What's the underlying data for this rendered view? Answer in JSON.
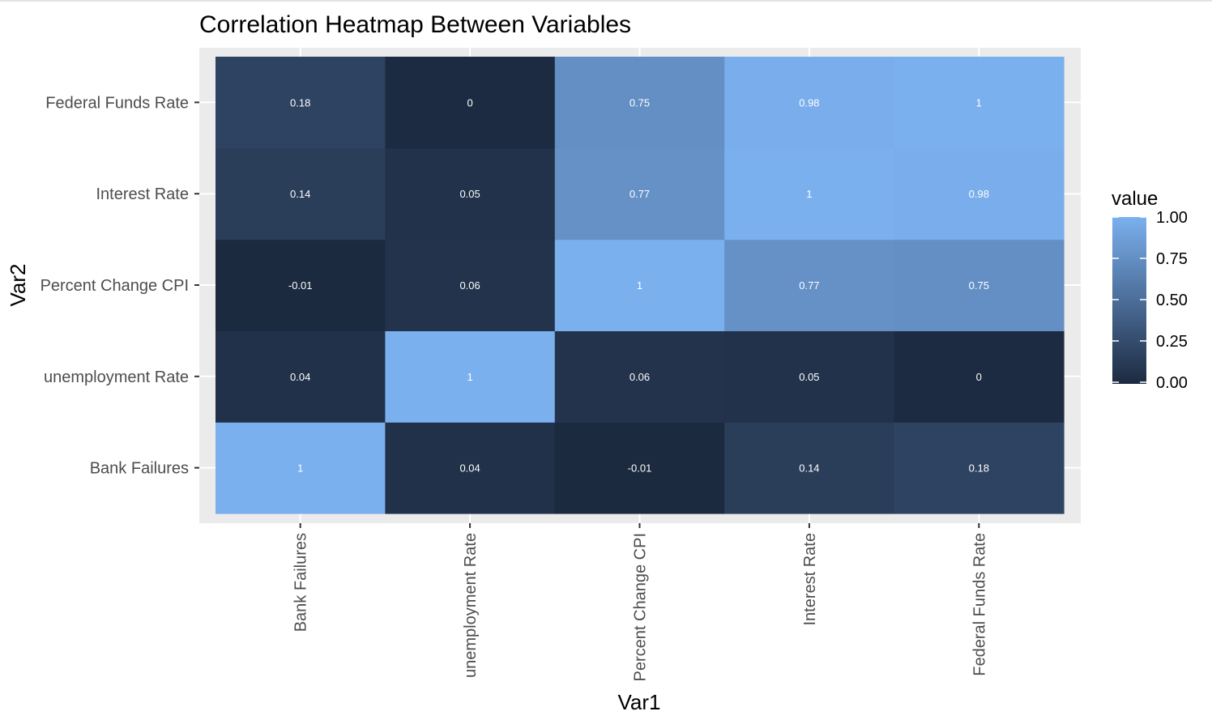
{
  "chart_data": {
    "type": "heatmap",
    "title": "Correlation Heatmap Between Variables",
    "xlabel": "Var1",
    "ylabel": "Var2",
    "x_categories": [
      "Bank Failures",
      "unemployment Rate",
      "Percent Change CPI",
      "Interest Rate",
      "Federal Funds Rate"
    ],
    "y_categories": [
      "Bank Failures",
      "unemployment Rate",
      "Percent Change CPI",
      "Interest Rate",
      "Federal Funds Rate"
    ],
    "values": [
      [
        1,
        0.04,
        -0.01,
        0.14,
        0.18
      ],
      [
        0.04,
        1,
        0.06,
        0.05,
        0
      ],
      [
        -0.01,
        0.06,
        1,
        0.77,
        0.75
      ],
      [
        0.14,
        0.05,
        0.77,
        1,
        0.98
      ],
      [
        0.18,
        0,
        0.75,
        0.98,
        1
      ]
    ],
    "value_labels": [
      [
        "1",
        "0.04",
        "-0.01",
        "0.14",
        "0.18"
      ],
      [
        "0.04",
        "1",
        "0.06",
        "0.05",
        "0"
      ],
      [
        "-0.01",
        "0.06",
        "1",
        "0.77",
        "0.75"
      ],
      [
        "0.14",
        "0.05",
        "0.77",
        "1",
        "0.98"
      ],
      [
        "0.18",
        "0",
        "0.75",
        "0.98",
        "1"
      ]
    ],
    "legend": {
      "title": "value",
      "breaks": [
        "1.00",
        "0.75",
        "0.50",
        "0.25",
        "0.00"
      ],
      "placement": "right"
    },
    "color_scale": {
      "low": "#1c2a40",
      "high": "#7bb0ef",
      "domain": [
        -0.01,
        1
      ]
    },
    "colors": {
      "panel_background": "#ebebeb",
      "gridline": "#ffffff"
    },
    "grid": true
  }
}
